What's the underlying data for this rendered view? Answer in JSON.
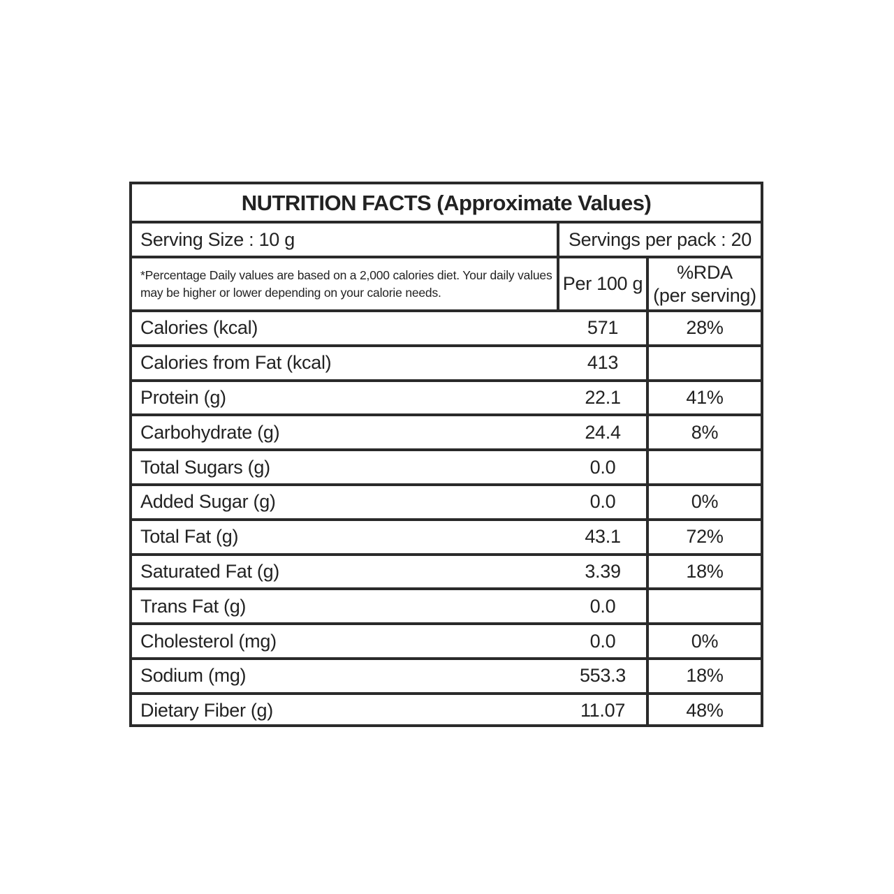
{
  "title": "NUTRITION FACTS (Approximate Values)",
  "serving_size": "Serving Size : 10 g",
  "servings_per_pack": "Servings per pack : 20",
  "note": "*Percentage Daily values are based on a 2,000 calories diet. Your daily values may be higher or lower depending on your calorie needs.",
  "col_per100": "Per 100 g",
  "col_rda_1": "%RDA",
  "col_rda_2": "(per serving)",
  "rows": [
    {
      "label": "Calories (kcal)",
      "value": "571",
      "rda": "28%"
    },
    {
      "label": "Calories from Fat (kcal)",
      "value": "413",
      "rda": ""
    },
    {
      "label": "Protein (g)",
      "value": "22.1",
      "rda": "41%"
    },
    {
      "label": "Carbohydrate (g)",
      "value": "24.4",
      "rda": "8%"
    },
    {
      "label": "Total Sugars (g)",
      "value": "0.0",
      "rda": ""
    },
    {
      "label": "Added Sugar (g)",
      "value": "0.0",
      "rda": "0%"
    },
    {
      "label": "Total Fat (g)",
      "value": "43.1",
      "rda": "72%"
    },
    {
      "label": "Saturated Fat (g)",
      "value": "3.39",
      "rda": "18%"
    },
    {
      "label": "Trans Fat (g)",
      "value": "0.0",
      "rda": ""
    },
    {
      "label": "Cholesterol (mg)",
      "value": "0.0",
      "rda": "0%"
    },
    {
      "label": "Sodium (mg)",
      "value": "553.3",
      "rda": "18%"
    },
    {
      "label": "Dietary Fiber (g)",
      "value": "11.07",
      "rda": "48%"
    }
  ]
}
